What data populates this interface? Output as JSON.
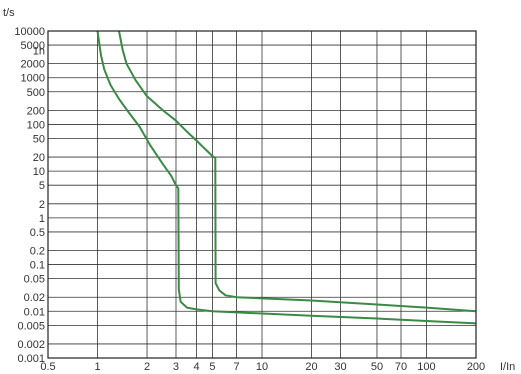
{
  "chart_data": {
    "type": "line",
    "title": "",
    "xlabel": "I/In",
    "ylabel": "t/s",
    "x_scale": "log",
    "y_scale": "log",
    "xlim": [
      0.5,
      200
    ],
    "ylim": [
      0.001,
      10000
    ],
    "grid": true,
    "legend": "none",
    "x_ticks": [
      0.5,
      1,
      2,
      3,
      4,
      5,
      7,
      10,
      20,
      30,
      50,
      70,
      100,
      200
    ],
    "x_tick_labels": [
      "0.5",
      "1",
      "2",
      "3",
      "4",
      "5",
      "7",
      "10",
      "20",
      "30",
      "50",
      "70",
      "100",
      "200"
    ],
    "y_ticks": [
      10000,
      5000,
      2000,
      1000,
      500,
      200,
      100,
      50,
      20,
      10,
      5,
      2,
      1,
      0.5,
      0.2,
      0.1,
      0.05,
      0.02,
      0.01,
      0.005,
      0.002,
      0.001
    ],
    "y_tick_labels": [
      "10000",
      "5000",
      "2000",
      "1000",
      "500",
      "200",
      "100",
      "50",
      "20",
      "10",
      "5",
      "2",
      "1",
      "0.5",
      "0.2",
      "0.1",
      "0.05",
      "0.02",
      "0.01",
      "0.005",
      "0.002",
      "0.001"
    ],
    "annotations": [
      {
        "text": "1h",
        "x": 0.85,
        "y": 3600
      }
    ],
    "series": [
      {
        "color": "#3a8a45",
        "points": [
          [
            1.0,
            10000
          ],
          [
            1.05,
            3000
          ],
          [
            1.1,
            1500
          ],
          [
            1.2,
            700
          ],
          [
            1.35,
            350
          ],
          [
            1.55,
            180
          ],
          [
            1.8,
            90
          ],
          [
            2.1,
            35
          ],
          [
            2.5,
            14
          ],
          [
            2.8,
            8
          ],
          [
            3.0,
            5
          ],
          [
            3.1,
            4.3
          ],
          [
            3.12,
            0.03
          ],
          [
            3.2,
            0.016
          ],
          [
            3.5,
            0.012
          ],
          [
            4.0,
            0.011
          ],
          [
            5.0,
            0.01
          ],
          [
            20,
            0.008
          ],
          [
            50,
            0.007
          ],
          [
            100,
            0.0062
          ],
          [
            200,
            0.0055
          ]
        ]
      },
      {
        "color": "#3a8a45",
        "points": [
          [
            1.35,
            10000
          ],
          [
            1.42,
            4000
          ],
          [
            1.5,
            2000
          ],
          [
            1.7,
            900
          ],
          [
            2.0,
            400
          ],
          [
            2.5,
            200
          ],
          [
            3.0,
            120
          ],
          [
            3.5,
            70
          ],
          [
            4.0,
            45
          ],
          [
            4.5,
            30
          ],
          [
            5.0,
            21
          ],
          [
            5.2,
            19
          ],
          [
            5.22,
            0.04
          ],
          [
            5.5,
            0.028
          ],
          [
            6.0,
            0.022
          ],
          [
            7.0,
            0.02
          ],
          [
            20,
            0.017
          ],
          [
            50,
            0.014
          ],
          [
            100,
            0.012
          ],
          [
            200,
            0.01
          ]
        ]
      }
    ]
  }
}
